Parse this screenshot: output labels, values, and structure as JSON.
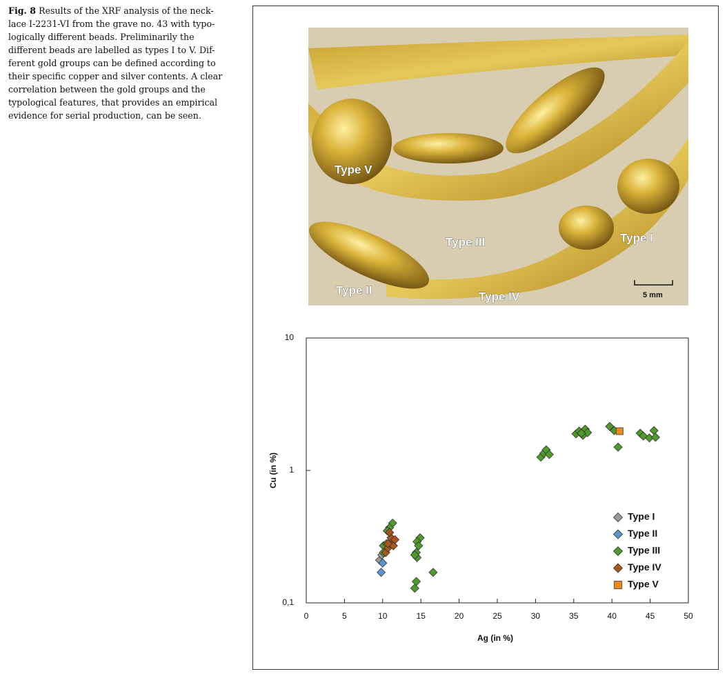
{
  "caption": {
    "label": "Fig. 8",
    "lines": [
      "Results of the XRF analysis of the neck-",
      "lace I-2231-VI from the grave no. 43 with typo-",
      "logically different beads. Preliminarily the",
      "different beads are labelled as types I to V. Dif-",
      "ferent gold groups can be defined according to",
      "their specific copper and silver contents. A clear",
      "correlation between the gold groups and the",
      "typological features, that provides an empirical",
      "evidence for serial production, can be seen."
    ]
  },
  "photo": {
    "labels": [
      "Type V",
      "Type III",
      "Type I",
      "Type II",
      "Type IV"
    ],
    "scale_label": "5 mm"
  },
  "chart_data": {
    "type": "scatter",
    "xlabel": "Ag (in %)",
    "ylabel": "Cu (in %)",
    "yscale": "log",
    "xlim": [
      0,
      50
    ],
    "xticks": [
      0,
      5,
      10,
      15,
      20,
      25,
      30,
      35,
      40,
      45,
      50
    ],
    "ylim": [
      0.1,
      10
    ],
    "yticks": [
      {
        "value": 0.1,
        "label": "0,1"
      },
      1,
      10
    ],
    "legend": "lower right",
    "series": [
      {
        "name": "Type I",
        "color": "#9a9a9a",
        "marker": "diamond",
        "x": [
          9.6,
          9.9
        ],
        "values": [
          0.21,
          0.23
        ]
      },
      {
        "name": "Type II",
        "color": "#5b95cf",
        "marker": "diamond",
        "x": [
          9.8,
          10.0
        ],
        "values": [
          0.17,
          0.2
        ]
      },
      {
        "name": "Type III",
        "color": "#4f9a2c",
        "marker": "diamond",
        "x": [
          30.7,
          31.1,
          31.4,
          31.8,
          35.3,
          35.7,
          36.2,
          36.5,
          36.8,
          36.0,
          39.7,
          40.3,
          40.8,
          43.7,
          44.1,
          44.9,
          45.5,
          45.7,
          11.3,
          10.9,
          10.6,
          10.1,
          10.5,
          10.1,
          14.9,
          14.5,
          14.7,
          14.4,
          14.5,
          14.2,
          14.4,
          14.2,
          16.6
        ],
        "values": [
          1.26,
          1.35,
          1.43,
          1.32,
          1.89,
          1.98,
          1.84,
          2.05,
          1.93,
          1.91,
          2.15,
          2.0,
          1.5,
          1.91,
          1.82,
          1.76,
          2.0,
          1.78,
          0.4,
          0.37,
          0.35,
          0.27,
          0.28,
          0.24,
          0.31,
          0.29,
          0.27,
          0.24,
          0.22,
          0.23,
          0.145,
          0.129,
          0.17
        ]
      },
      {
        "name": "Type IV",
        "color": "#a8561c",
        "marker": "diamond",
        "x": [
          10.4,
          10.7,
          11.0,
          11.1,
          11.4,
          10.9,
          11.6,
          10.7
        ],
        "values": [
          0.24,
          0.26,
          0.28,
          0.31,
          0.27,
          0.34,
          0.3,
          0.28
        ]
      },
      {
        "name": "Type V",
        "color": "#f08a1c",
        "marker": "square",
        "x": [
          41.0
        ],
        "values": [
          1.98
        ]
      }
    ]
  }
}
